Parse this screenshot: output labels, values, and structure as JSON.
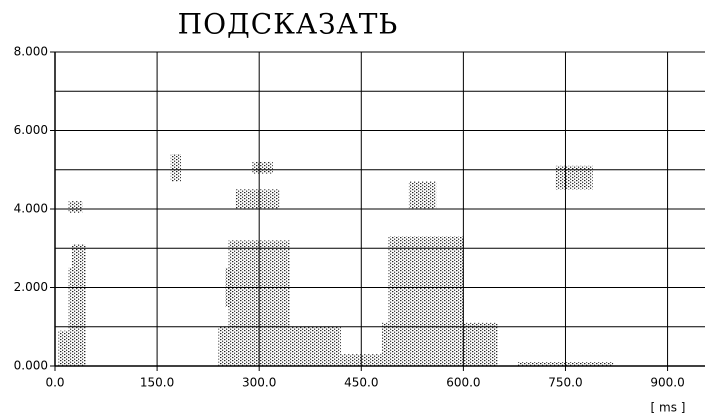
{
  "chart_data": {
    "type": "spectrogram",
    "title": "ПОДСКАЗАТЬ",
    "x_unit": "[ ms ]",
    "xlim": [
      0,
      955
    ],
    "ylim": [
      0,
      8000
    ],
    "xticks": [
      {
        "value": 0,
        "label": "0.0"
      },
      {
        "value": 150,
        "label": "150.0"
      },
      {
        "value": 300,
        "label": "300.0"
      },
      {
        "value": 450,
        "label": "450.0"
      },
      {
        "value": 600,
        "label": "600.0"
      },
      {
        "value": 750,
        "label": "750.0"
      },
      {
        "value": 900,
        "label": "900.0"
      }
    ],
    "yticks": [
      {
        "value": 0,
        "label": "0.000"
      },
      {
        "value": 2000,
        "label": "2.000"
      },
      {
        "value": 4000,
        "label": "4.000"
      },
      {
        "value": 6000,
        "label": "6.000"
      },
      {
        "value": 8000,
        "label": "8.000"
      }
    ],
    "yminor": [
      1000,
      3000,
      5000,
      7000
    ],
    "grid": true,
    "color": "#000000",
    "regions": [
      {
        "x": [
          5,
          45
        ],
        "y": [
          0,
          900
        ]
      },
      {
        "x": [
          20,
          45
        ],
        "y": [
          900,
          2500
        ]
      },
      {
        "x": [
          25,
          45
        ],
        "y": [
          2500,
          3100
        ]
      },
      {
        "x": [
          20,
          40
        ],
        "y": [
          3900,
          4200
        ]
      },
      {
        "x": [
          170,
          185
        ],
        "y": [
          4700,
          5400
        ]
      },
      {
        "x": [
          250,
          260
        ],
        "y": [
          1500,
          2500
        ]
      },
      {
        "x": [
          240,
          420
        ],
        "y": [
          0,
          1000
        ]
      },
      {
        "x": [
          255,
          345
        ],
        "y": [
          1000,
          3200
        ]
      },
      {
        "x": [
          265,
          330
        ],
        "y": [
          4000,
          4500
        ]
      },
      {
        "x": [
          290,
          320
        ],
        "y": [
          4900,
          5200
        ]
      },
      {
        "x": [
          420,
          480
        ],
        "y": [
          0,
          300
        ]
      },
      {
        "x": [
          480,
          650
        ],
        "y": [
          0,
          1100
        ]
      },
      {
        "x": [
          490,
          600
        ],
        "y": [
          1100,
          3300
        ]
      },
      {
        "x": [
          520,
          560
        ],
        "y": [
          4000,
          4700
        ]
      },
      {
        "x": [
          735,
          790
        ],
        "y": [
          4500,
          5100
        ]
      },
      {
        "x": [
          680,
          820
        ],
        "y": [
          0,
          100
        ]
      }
    ]
  }
}
